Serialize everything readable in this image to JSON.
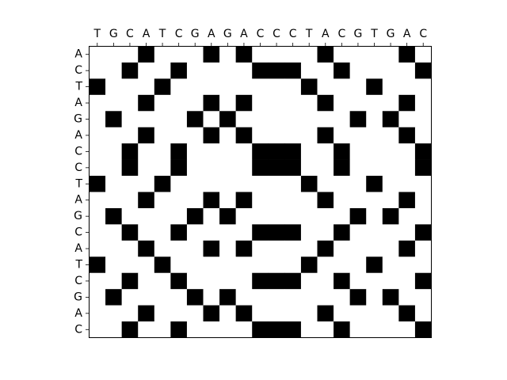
{
  "chart_data": {
    "type": "heatmap",
    "title": "",
    "xlabel": "",
    "ylabel": "",
    "x_tick_labels": [
      "T",
      "G",
      "C",
      "A",
      "T",
      "C",
      "G",
      "A",
      "G",
      "A",
      "C",
      "C",
      "C",
      "T",
      "A",
      "C",
      "G",
      "T",
      "G",
      "A",
      "C"
    ],
    "y_tick_labels": [
      "A",
      "C",
      "T",
      "A",
      "G",
      "A",
      "C",
      "C",
      "T",
      "A",
      "G",
      "C",
      "A",
      "T",
      "C",
      "G",
      "A",
      "C"
    ],
    "x_axis_position": "top",
    "grid": false,
    "colors": {
      "match": "#000000",
      "mismatch": "#ffffff",
      "axes": "#000000"
    },
    "values": [
      [
        0,
        0,
        0,
        1,
        0,
        0,
        0,
        1,
        0,
        1,
        0,
        0,
        0,
        0,
        1,
        0,
        0,
        0,
        0,
        1,
        0
      ],
      [
        0,
        0,
        1,
        0,
        0,
        1,
        0,
        0,
        0,
        0,
        1,
        1,
        1,
        0,
        0,
        1,
        0,
        0,
        0,
        0,
        1
      ],
      [
        1,
        0,
        0,
        0,
        1,
        0,
        0,
        0,
        0,
        0,
        0,
        0,
        0,
        1,
        0,
        0,
        0,
        1,
        0,
        0,
        0
      ],
      [
        0,
        0,
        0,
        1,
        0,
        0,
        0,
        1,
        0,
        1,
        0,
        0,
        0,
        0,
        1,
        0,
        0,
        0,
        0,
        1,
        0
      ],
      [
        0,
        1,
        0,
        0,
        0,
        0,
        1,
        0,
        1,
        0,
        0,
        0,
        0,
        0,
        0,
        0,
        1,
        0,
        1,
        0,
        0
      ],
      [
        0,
        0,
        0,
        1,
        0,
        0,
        0,
        1,
        0,
        1,
        0,
        0,
        0,
        0,
        1,
        0,
        0,
        0,
        0,
        1,
        0
      ],
      [
        0,
        0,
        1,
        0,
        0,
        1,
        0,
        0,
        0,
        0,
        1,
        1,
        1,
        0,
        0,
        1,
        0,
        0,
        0,
        0,
        1
      ],
      [
        0,
        0,
        1,
        0,
        0,
        1,
        0,
        0,
        0,
        0,
        1,
        1,
        1,
        0,
        0,
        1,
        0,
        0,
        0,
        0,
        1
      ],
      [
        1,
        0,
        0,
        0,
        1,
        0,
        0,
        0,
        0,
        0,
        0,
        0,
        0,
        1,
        0,
        0,
        0,
        1,
        0,
        0,
        0
      ],
      [
        0,
        0,
        0,
        1,
        0,
        0,
        0,
        1,
        0,
        1,
        0,
        0,
        0,
        0,
        1,
        0,
        0,
        0,
        0,
        1,
        0
      ],
      [
        0,
        1,
        0,
        0,
        0,
        0,
        1,
        0,
        1,
        0,
        0,
        0,
        0,
        0,
        0,
        0,
        1,
        0,
        1,
        0,
        0
      ],
      [
        0,
        0,
        1,
        0,
        0,
        1,
        0,
        0,
        0,
        0,
        1,
        1,
        1,
        0,
        0,
        1,
        0,
        0,
        0,
        0,
        1
      ],
      [
        0,
        0,
        0,
        1,
        0,
        0,
        0,
        1,
        0,
        1,
        0,
        0,
        0,
        0,
        1,
        0,
        0,
        0,
        0,
        1,
        0
      ],
      [
        1,
        0,
        0,
        0,
        1,
        0,
        0,
        0,
        0,
        0,
        0,
        0,
        0,
        1,
        0,
        0,
        0,
        1,
        0,
        0,
        0
      ],
      [
        0,
        0,
        1,
        0,
        0,
        1,
        0,
        0,
        0,
        0,
        1,
        1,
        1,
        0,
        0,
        1,
        0,
        0,
        0,
        0,
        1
      ],
      [
        0,
        1,
        0,
        0,
        0,
        0,
        1,
        0,
        1,
        0,
        0,
        0,
        0,
        0,
        0,
        0,
        1,
        0,
        1,
        0,
        0
      ],
      [
        0,
        0,
        0,
        1,
        0,
        0,
        0,
        1,
        0,
        1,
        0,
        0,
        0,
        0,
        1,
        0,
        0,
        0,
        0,
        1,
        0
      ],
      [
        0,
        0,
        1,
        0,
        0,
        1,
        0,
        0,
        0,
        0,
        1,
        1,
        1,
        0,
        0,
        1,
        0,
        0,
        0,
        0,
        1
      ]
    ]
  }
}
